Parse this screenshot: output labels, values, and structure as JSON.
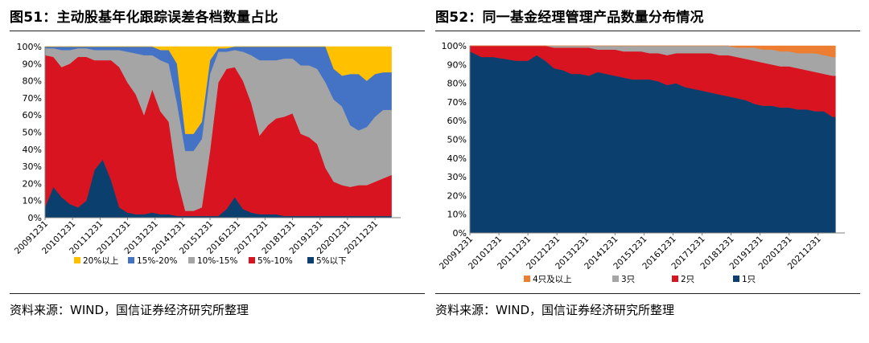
{
  "panels": [
    {
      "title": "图51：主动股基年化跟踪误差各档数量占比",
      "source": "资料来源：WIND，国信证券经济研究所整理"
    },
    {
      "title": "图52：同一基金经理管理产品数量分布情况",
      "source": "资料来源：WIND，国信证券经济研究所整理"
    }
  ],
  "chart_data": [
    {
      "type": "area",
      "stacked": true,
      "title": "图51：主动股基年化跟踪误差各档数量占比",
      "x": [
        2009.9,
        2010.2,
        2010.5,
        2010.8,
        2011.1,
        2011.4,
        2011.7,
        2012.0,
        2012.3,
        2012.6,
        2012.9,
        2013.2,
        2013.5,
        2013.8,
        2014.1,
        2014.4,
        2014.7,
        2015.0,
        2015.3,
        2015.6,
        2015.9,
        2016.2,
        2016.5,
        2016.8,
        2017.1,
        2017.4,
        2017.7,
        2018.0,
        2018.3,
        2018.6,
        2018.9,
        2019.2,
        2019.5,
        2019.8,
        2020.1,
        2020.4,
        2020.7,
        2021.0,
        2021.3,
        2021.6,
        2021.9,
        2022.2,
        2022.5
      ],
      "x_tick_labels": [
        "20091231",
        "20101231",
        "20111231",
        "20121231",
        "20131231",
        "20141231",
        "20151231",
        "20161231",
        "20171231",
        "20181231",
        "20191231",
        "20201231",
        "20211231"
      ],
      "xlim": [
        2009.9,
        2022.6
      ],
      "ylim": [
        0,
        100
      ],
      "y_tick_labels": [
        "0%",
        "10%",
        "20%",
        "30%",
        "40%",
        "50%",
        "60%",
        "70%",
        "80%",
        "90%",
        "100%"
      ],
      "legend_position": "bottom",
      "series": [
        {
          "name": "5%以下",
          "color": "#0b3f6e",
          "values": [
            6,
            18,
            12,
            8,
            6,
            10,
            28,
            34,
            22,
            6,
            3,
            2,
            2,
            3,
            2,
            2,
            1,
            1,
            1,
            1,
            1,
            1,
            5,
            12,
            5,
            3,
            2,
            2,
            2,
            1,
            1,
            1,
            1,
            1,
            1,
            1,
            1,
            1,
            1,
            1,
            1,
            1,
            1
          ]
        },
        {
          "name": "5%-10%",
          "color": "#d7141f",
          "values": [
            89,
            76,
            76,
            82,
            88,
            84,
            64,
            58,
            70,
            82,
            76,
            70,
            58,
            72,
            60,
            54,
            22,
            3,
            3,
            5,
            38,
            78,
            82,
            76,
            75,
            64,
            46,
            52,
            56,
            58,
            60,
            48,
            46,
            42,
            28,
            20,
            18,
            17,
            18,
            18,
            20,
            22,
            24
          ]
        },
        {
          "name": "10%-15%",
          "color": "#a5a5a5",
          "values": [
            4,
            5,
            10,
            8,
            5,
            5,
            6,
            6,
            6,
            10,
            18,
            24,
            35,
            20,
            30,
            34,
            44,
            35,
            35,
            40,
            45,
            18,
            10,
            10,
            17,
            28,
            44,
            38,
            34,
            34,
            32,
            40,
            42,
            44,
            50,
            48,
            46,
            36,
            32,
            34,
            38,
            40,
            38
          ]
        },
        {
          "name": "15%-20%",
          "color": "#4472c4",
          "values": [
            1,
            1,
            2,
            2,
            1,
            1,
            2,
            2,
            2,
            2,
            3,
            4,
            5,
            5,
            6,
            8,
            23,
            10,
            10,
            10,
            8,
            2,
            2,
            2,
            3,
            5,
            8,
            8,
            8,
            7,
            7,
            11,
            11,
            13,
            21,
            18,
            18,
            30,
            33,
            27,
            25,
            22,
            22
          ]
        },
        {
          "name": "20%以上",
          "color": "#ffc000",
          "values": [
            0,
            0,
            0,
            0,
            0,
            0,
            0,
            0,
            0,
            0,
            0,
            0,
            0,
            0,
            2,
            2,
            10,
            51,
            51,
            44,
            8,
            1,
            1,
            0,
            0,
            0,
            0,
            1,
            0,
            0,
            0,
            0,
            0,
            0,
            0,
            13,
            17,
            16,
            16,
            20,
            16,
            15,
            15
          ]
        }
      ]
    },
    {
      "type": "area",
      "stacked": true,
      "title": "图52：同一基金经理管理产品数量分布情况",
      "x": [
        2009.9,
        2010.3,
        2010.7,
        2011.1,
        2011.5,
        2011.9,
        2012.2,
        2012.5,
        2012.8,
        2013.1,
        2013.4,
        2013.7,
        2014.0,
        2014.3,
        2014.6,
        2014.9,
        2015.2,
        2015.5,
        2015.8,
        2016.1,
        2016.4,
        2016.7,
        2017.0,
        2017.3,
        2017.6,
        2017.9,
        2018.2,
        2018.5,
        2018.8,
        2019.1,
        2019.4,
        2019.7,
        2020.0,
        2020.3,
        2020.6,
        2020.9,
        2021.2,
        2021.5,
        2021.8,
        2022.1,
        2022.4,
        2022.5
      ],
      "x_tick_labels": [
        "20091231",
        "20101231",
        "20111231",
        "20121231",
        "20131231",
        "20141231",
        "20151231",
        "20161231",
        "20171231",
        "20181231",
        "20191231",
        "20201231",
        "20211231"
      ],
      "xlim": [
        2009.9,
        2022.6
      ],
      "ylim": [
        0,
        100
      ],
      "y_tick_labels": [
        "0%",
        "10%",
        "20%",
        "30%",
        "40%",
        "50%",
        "60%",
        "70%",
        "80%",
        "90%",
        "100%"
      ],
      "legend_position": "bottom",
      "series": [
        {
          "name": "1只",
          "color": "#0b3f6e",
          "values": [
            97,
            94,
            94,
            93,
            92,
            92,
            95,
            92,
            88,
            87,
            85,
            85,
            84,
            86,
            85,
            84,
            83,
            82,
            82,
            82,
            81,
            79,
            80,
            78,
            77,
            76,
            75,
            74,
            73,
            72,
            71,
            69,
            68,
            68,
            67,
            67,
            66,
            66,
            65,
            65,
            62,
            62
          ]
        },
        {
          "name": "2只",
          "color": "#d7141f",
          "values": [
            3,
            6,
            6,
            7,
            8,
            8,
            5,
            8,
            11,
            12,
            14,
            14,
            15,
            12,
            13,
            14,
            14,
            15,
            15,
            14,
            15,
            16,
            16,
            18,
            19,
            20,
            21,
            21,
            22,
            22,
            22,
            23,
            23,
            22,
            22,
            22,
            22,
            21,
            21,
            20,
            22,
            22
          ]
        },
        {
          "name": "3只",
          "color": "#a5a5a5",
          "values": [
            0,
            0,
            0,
            0,
            0,
            0,
            0,
            0,
            1,
            1,
            1,
            1,
            1,
            2,
            2,
            2,
            3,
            3,
            3,
            4,
            4,
            5,
            4,
            4,
            4,
            4,
            4,
            5,
            5,
            5,
            6,
            7,
            7,
            8,
            8,
            8,
            8,
            9,
            10,
            10,
            10,
            10
          ]
        },
        {
          "name": "4只及以上",
          "color": "#ed7d31",
          "values": [
            0,
            0,
            0,
            0,
            0,
            0,
            0,
            0,
            0,
            0,
            0,
            0,
            0,
            0,
            0,
            0,
            0,
            0,
            0,
            0,
            0,
            0,
            0,
            0,
            0,
            0,
            0,
            0,
            0,
            1,
            1,
            1,
            2,
            2,
            3,
            3,
            4,
            4,
            4,
            5,
            6,
            6
          ]
        }
      ]
    }
  ]
}
